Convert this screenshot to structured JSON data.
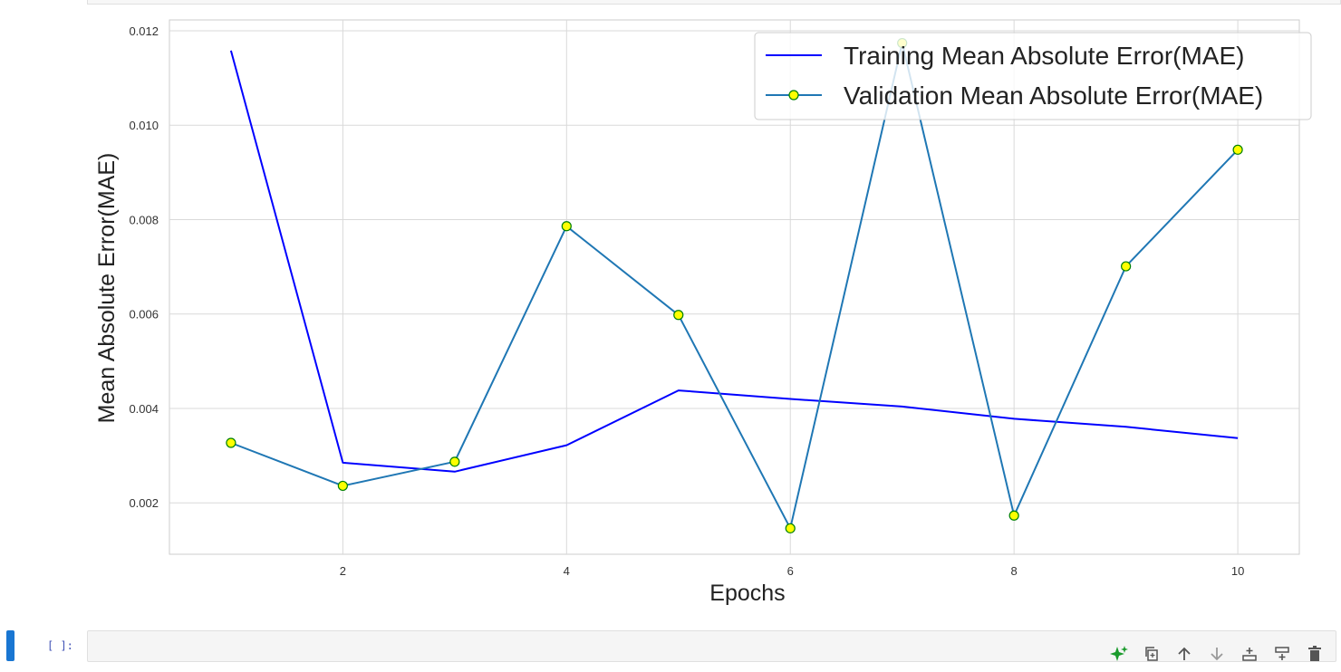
{
  "chart_data": {
    "type": "line",
    "xlabel": "Epochs",
    "ylabel": "Mean Absolute Error(MAE)",
    "xlim": [
      0.45,
      10.55
    ],
    "ylim": [
      0.00091,
      0.01223
    ],
    "x_ticks": [
      2,
      4,
      6,
      8,
      10
    ],
    "y_ticks": [
      0.002,
      0.004,
      0.006,
      0.008,
      0.01,
      0.012
    ],
    "y_tick_labels": [
      "0.002",
      "0.004",
      "0.006",
      "0.008",
      "0.010",
      "0.012"
    ],
    "grid": true,
    "legend_position": "top-right",
    "x": [
      1,
      2,
      3,
      4,
      5,
      6,
      7,
      8,
      9,
      10
    ],
    "series": [
      {
        "name": "Training Mean Absolute Error(MAE)",
        "values": [
          0.01158,
          0.00285,
          0.00266,
          0.00322,
          0.00438,
          0.0042,
          0.00404,
          0.00378,
          0.00361,
          0.00337
        ],
        "color": "#0000ff",
        "marker": "none"
      },
      {
        "name": "Validation Mean Absolute Error(MAE)",
        "values": [
          0.00327,
          0.00236,
          0.00287,
          0.00786,
          0.00598,
          0.00146,
          0.01174,
          0.00173,
          0.00701,
          0.00948
        ],
        "color": "#1f77b4",
        "marker": "circle",
        "marker_fill": "#ffff00",
        "marker_edge": "#008000"
      }
    ]
  },
  "cell": {
    "prompt": "[ ]:"
  },
  "toolbar": {
    "icons": [
      "sparkle-icon",
      "duplicate-icon",
      "move-up-icon",
      "move-down-icon",
      "insert-above-icon",
      "insert-below-icon",
      "delete-icon"
    ]
  }
}
